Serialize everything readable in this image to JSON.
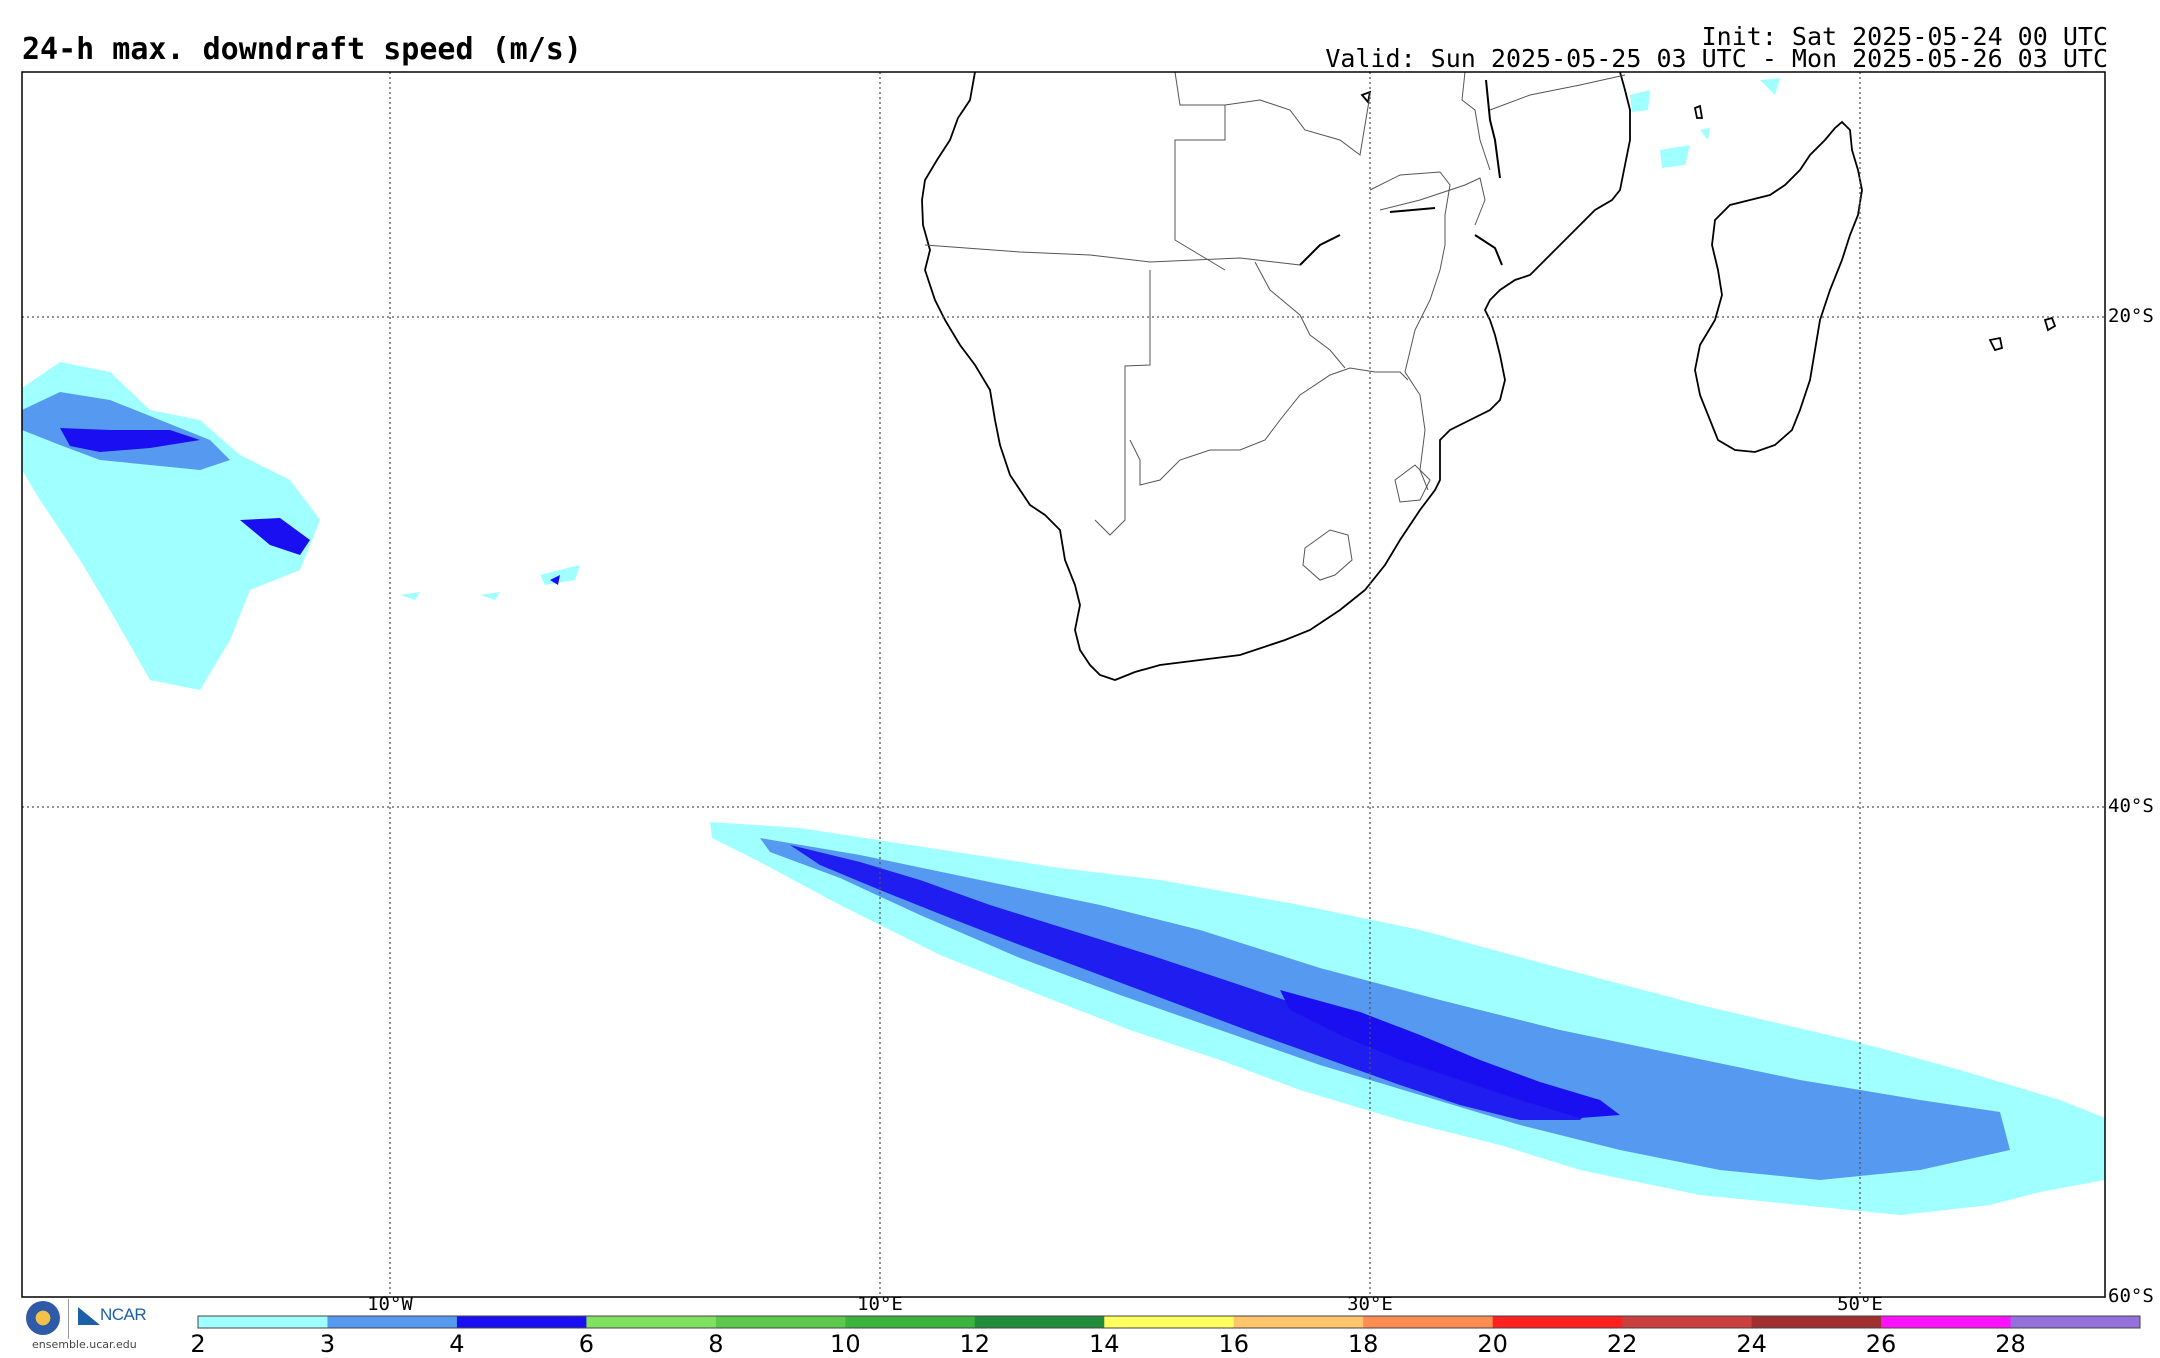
{
  "header": {
    "title": "24-h max. downdraft speed (m/s)",
    "init": "Init: Sat 2025-05-24 00 UTC",
    "valid": "Valid: Sun 2025-05-25 03 UTC - Mon 2025-05-26 03 UTC"
  },
  "map": {
    "projection": "cylindrical",
    "lon_range": [
      -25,
      60
    ],
    "lat_range": [
      -60,
      -10
    ],
    "gridlines": "dotted",
    "lat_labels": [
      "20°S",
      "40°S",
      "60°S"
    ],
    "lon_labels": [
      "10°W",
      "10°E",
      "30°E",
      "50°E"
    ]
  },
  "colorbar": {
    "ticks": [
      "2",
      "3",
      "4",
      "6",
      "8",
      "10",
      "12",
      "14",
      "16",
      "18",
      "20",
      "22",
      "24",
      "26",
      "28"
    ],
    "colors": [
      "#a0ffff",
      "#5599f0",
      "#1a0ff0",
      "#80e060",
      "#5cc94c",
      "#3ab43c",
      "#238c3c",
      "#ffff60",
      "#ffc56a",
      "#ff8c50",
      "#ff2020",
      "#cc3f3f",
      "#a03030",
      "#ff10ff",
      "#9370db"
    ]
  },
  "logos": {
    "nsf": "NSF",
    "ncar": "NCAR",
    "url": "ensemble.ucar.edu"
  }
}
